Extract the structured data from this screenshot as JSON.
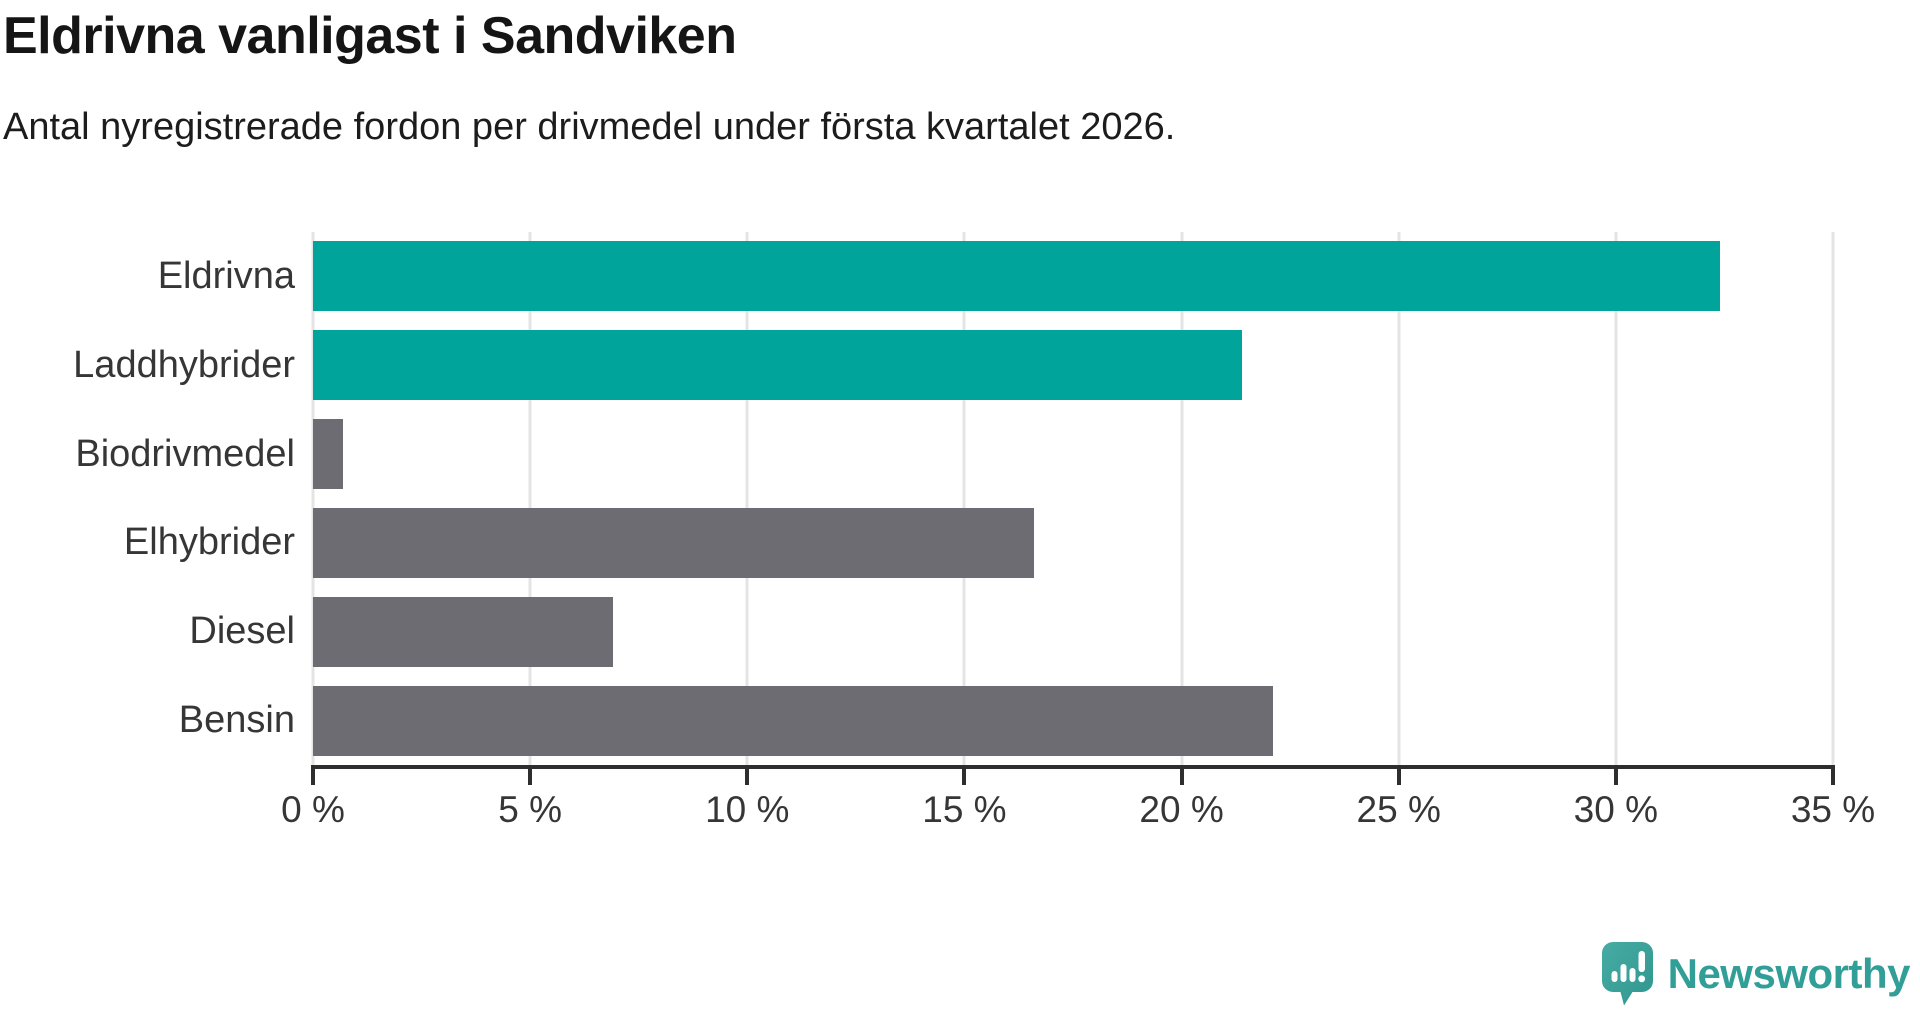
{
  "header": {
    "title": "Eldrivna vanligast i Sandviken",
    "subtitle": "Antal nyregistrerade fordon per drivmedel under första kvartalet 2026."
  },
  "chart_data": {
    "type": "bar",
    "orientation": "horizontal",
    "title": "Eldrivna vanligast i Sandviken",
    "subtitle": "Antal nyregistrerade fordon per drivmedel under första kvartalet 2026.",
    "categories": [
      "Eldrivna",
      "Laddhybrider",
      "Biodrivmedel",
      "Elhybrider",
      "Diesel",
      "Bensin"
    ],
    "values": [
      32.4,
      21.4,
      0.7,
      16.6,
      6.9,
      22.1
    ],
    "unit": "%",
    "xlim": [
      0,
      35
    ],
    "tick_step": 5,
    "tick_labels": [
      "0 %",
      "5 %",
      "10 %",
      "15 %",
      "20 %",
      "25 %",
      "30 %",
      "35 %"
    ],
    "grid": true,
    "legend": false,
    "colors": {
      "accent": "#00a49a",
      "muted": "#6c6c72"
    },
    "bar_color_keys": [
      "accent",
      "accent",
      "muted",
      "muted",
      "muted",
      "muted"
    ],
    "grid_color": "#e4e4e4",
    "axis_color": "#2e2e2e"
  },
  "footer": {
    "brand": "Newsworthy",
    "brand_color": "#319e97",
    "logo_icon": "newsworthy-speech-bubble-chart-icon",
    "logo_bubble_color_top": "#47aca3",
    "logo_bubble_color_bottom": "#2f968f"
  }
}
